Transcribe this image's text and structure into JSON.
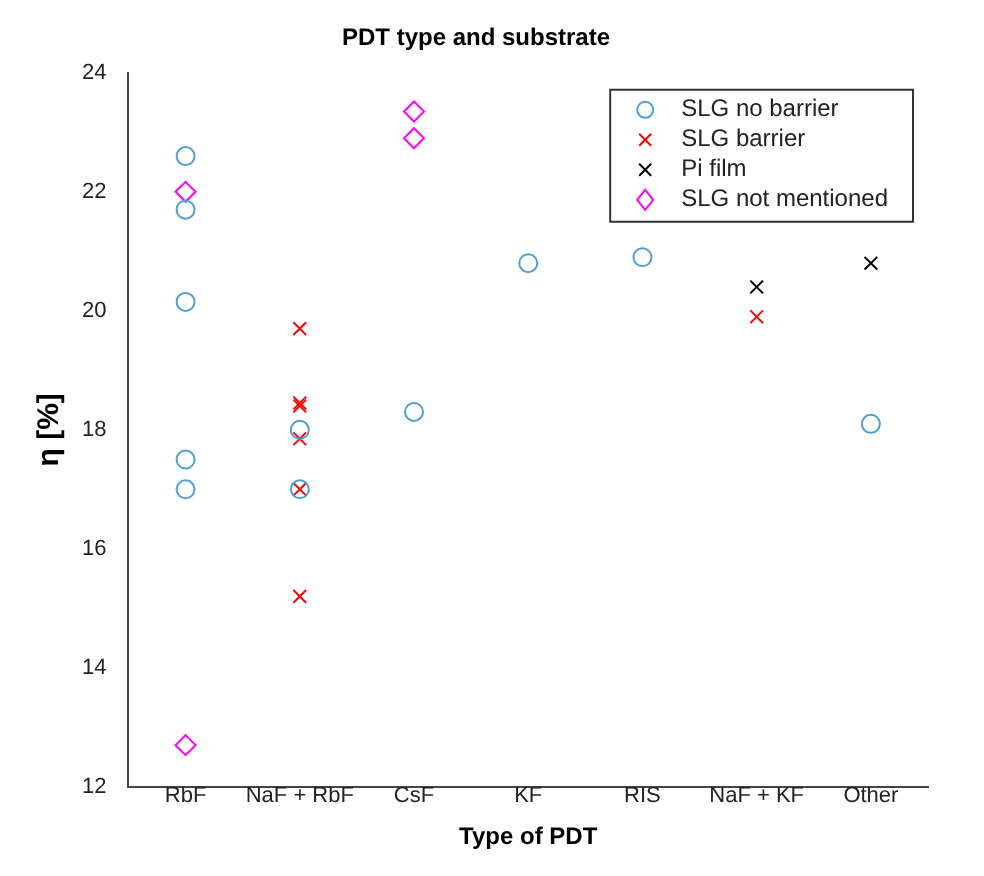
{
  "chart_data": {
    "type": "scatter",
    "title": "PDT type and substrate",
    "xlabel": "Type of PDT",
    "ylabel": "η [%]",
    "categories": [
      "RbF",
      "NaF + RbF",
      "CsF",
      "KF",
      "RIS",
      "NaF + KF",
      "Other"
    ],
    "series": [
      {
        "name": "SLG no barrier",
        "color": "#4d9fdb",
        "marker": "circle",
        "x": [
          "RbF",
          "RbF",
          "RbF",
          "RbF",
          "RbF",
          "NaF + RbF",
          "NaF + RbF",
          "CsF",
          "KF",
          "RIS",
          "Other"
        ],
        "values": [
          22.6,
          21.7,
          20.15,
          17.5,
          17.0,
          18.0,
          17.0,
          18.3,
          20.8,
          20.9,
          18.1
        ]
      },
      {
        "name": "SLG barrier",
        "color": "#ff0000",
        "marker": "cross",
        "x": [
          "NaF + RbF",
          "NaF + RbF",
          "NaF + RbF",
          "NaF + RbF",
          "NaF + RbF",
          "NaF + RbF",
          "NaF + KF"
        ],
        "values": [
          19.7,
          18.45,
          18.4,
          17.85,
          17.0,
          15.2,
          19.9
        ]
      },
      {
        "name": "Pi film",
        "color": "#000000",
        "marker": "cross",
        "x": [
          "NaF + KF",
          "Other"
        ],
        "values": [
          20.4,
          20.8
        ]
      },
      {
        "name": "SLG not mentioned",
        "color": "#ff00ff",
        "marker": "diamond",
        "x": [
          "RbF",
          "RbF",
          "CsF",
          "CsF"
        ],
        "values": [
          22.0,
          12.7,
          23.35,
          22.9
        ]
      }
    ],
    "ylim": [
      12,
      24
    ],
    "yticks": [
      12,
      14,
      16,
      18,
      20,
      22,
      24
    ],
    "grid": false,
    "legend": "top right"
  }
}
